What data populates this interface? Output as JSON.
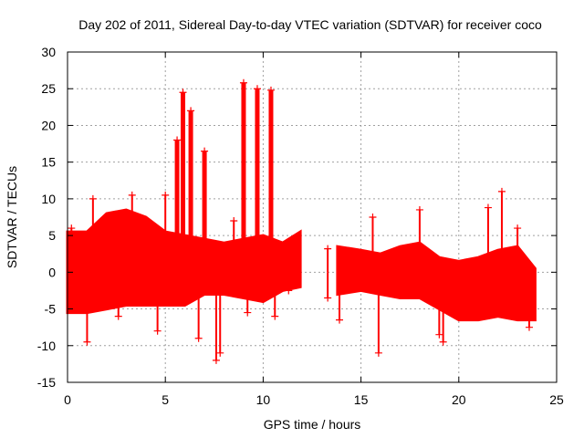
{
  "chart_data": {
    "type": "scatter",
    "title": "Day 202 of 2011, Sidereal Day-to-day VTEC variation (SDTVAR) for receiver coco",
    "xlabel": "GPS time / hours",
    "ylabel": "SDTVAR / TECUs",
    "xlim": [
      0,
      25
    ],
    "ylim": [
      -15,
      30
    ],
    "xticks": [
      0,
      5,
      10,
      15,
      20,
      25
    ],
    "yticks": [
      -15,
      -10,
      -5,
      0,
      5,
      10,
      15,
      20,
      25,
      30
    ],
    "grid": true,
    "marker": "+",
    "series_color": "#ff0000",
    "series": [
      {
        "name": "SDTVAR",
        "band_segments": [
          {
            "x": [
              0.0,
              1.0,
              2.0,
              3.0,
              4.0,
              5.0,
              6.0,
              7.0,
              8.0,
              9.0,
              10.0,
              11.0,
              11.9
            ],
            "upper": [
              5.5,
              5.5,
              8.0,
              8.5,
              7.5,
              5.5,
              5.0,
              4.5,
              4.0,
              4.5,
              5.0,
              4.0,
              5.5
            ],
            "lower": [
              -5.5,
              -5.5,
              -5.0,
              -4.5,
              -4.5,
              -4.5,
              -4.5,
              -3.0,
              -3.0,
              -3.5,
              -4.0,
              -2.5,
              -2.0
            ]
          },
          {
            "x": [
              13.8,
              15.0,
              16.0,
              17.0,
              18.0,
              19.0,
              20.0,
              21.0,
              22.0,
              23.0,
              23.9
            ],
            "upper": [
              3.5,
              3.0,
              2.5,
              3.5,
              4.0,
              2.0,
              1.5,
              2.0,
              3.0,
              3.5,
              0.5
            ],
            "lower": [
              -3.0,
              -2.5,
              -3.0,
              -3.5,
              -3.5,
              -5.0,
              -6.5,
              -6.5,
              -6.0,
              -6.5,
              -6.5
            ]
          }
        ],
        "spikes": [
          {
            "x": 0.2,
            "y": 6.0
          },
          {
            "x": 1.0,
            "y": -9.5
          },
          {
            "x": 1.3,
            "y": 10.0
          },
          {
            "x": 2.6,
            "y": -6.0
          },
          {
            "x": 3.3,
            "y": 10.5
          },
          {
            "x": 4.6,
            "y": -8.0
          },
          {
            "x": 5.0,
            "y": 10.5
          },
          {
            "x": 5.6,
            "y": 18.0
          },
          {
            "x": 5.9,
            "y": 24.5
          },
          {
            "x": 6.3,
            "y": 22.0
          },
          {
            "x": 6.7,
            "y": -9.0
          },
          {
            "x": 7.0,
            "y": 16.5
          },
          {
            "x": 7.6,
            "y": -12.0
          },
          {
            "x": 7.8,
            "y": -11.0
          },
          {
            "x": 8.5,
            "y": 7.0
          },
          {
            "x": 9.0,
            "y": 25.8
          },
          {
            "x": 9.7,
            "y": 25.0
          },
          {
            "x": 9.2,
            "y": -5.5
          },
          {
            "x": 10.4,
            "y": 24.8
          },
          {
            "x": 10.6,
            "y": -6.0
          },
          {
            "x": 11.3,
            "y": -2.5
          },
          {
            "x": 13.3,
            "y": 3.2
          },
          {
            "x": 13.3,
            "y": -3.5
          },
          {
            "x": 13.9,
            "y": -6.5
          },
          {
            "x": 15.6,
            "y": 7.5
          },
          {
            "x": 15.9,
            "y": -11.0
          },
          {
            "x": 18.0,
            "y": 8.5
          },
          {
            "x": 19.0,
            "y": -8.5
          },
          {
            "x": 19.2,
            "y": -9.5
          },
          {
            "x": 21.5,
            "y": 8.8
          },
          {
            "x": 22.2,
            "y": 11.0
          },
          {
            "x": 23.0,
            "y": 6.0
          },
          {
            "x": 23.6,
            "y": -7.5
          }
        ]
      }
    ]
  }
}
